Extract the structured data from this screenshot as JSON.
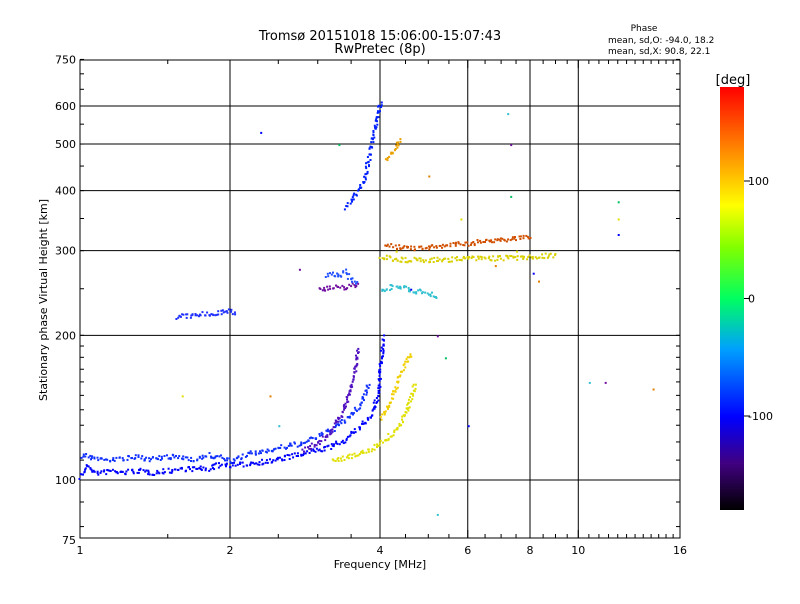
{
  "chart_data": {
    "type": "scatter",
    "title": "Tromsø 20151018 15:06:00-15:07:43",
    "subtitle": "RwPretec (8p)",
    "xlabel": "Frequency [MHz]",
    "ylabel": "Stationary phase Virtual Height [km]",
    "x_scale": "log2",
    "y_scale": "log",
    "xlim": [
      1,
      16
    ],
    "ylim": [
      70,
      750
    ],
    "x_ticks": [
      1,
      2,
      4,
      6,
      8,
      10,
      16
    ],
    "x_tick_labels": [
      "1",
      "2",
      "4",
      "6",
      "8",
      "10",
      "16"
    ],
    "x_grid": [
      2,
      4,
      6,
      8,
      10
    ],
    "y_ticks": [
      75,
      100,
      200,
      300,
      400,
      500,
      600,
      750
    ],
    "y_tick_labels": [
      "75",
      "100",
      "200",
      "300",
      "400",
      "500",
      "600",
      "750"
    ],
    "y_grid": [
      100,
      200,
      300,
      400,
      500,
      600
    ],
    "grid": true,
    "phase_stats": {
      "heading": "Phase",
      "line_o": "mean, sd,O: -94.0, 18.2",
      "line_x": "mean, sd,X:  90.8, 22.1"
    },
    "colorbar": {
      "label": "[deg]",
      "range": [
        -180,
        180
      ],
      "ticks": [
        -100,
        0,
        100
      ],
      "tick_labels": [
        "-100",
        "0",
        "100"
      ]
    },
    "traces": [
      {
        "color": "#0000ff",
        "phase": -100,
        "points": [
          [
            1.0,
            102
          ],
          [
            1.03,
            108
          ],
          [
            1.06,
            104
          ],
          [
            1.1,
            104
          ],
          [
            1.15,
            105
          ],
          [
            1.2,
            104
          ],
          [
            1.3,
            105
          ],
          [
            1.4,
            104
          ],
          [
            1.5,
            105
          ],
          [
            1.6,
            106
          ],
          [
            1.7,
            106
          ],
          [
            1.8,
            106
          ],
          [
            1.9,
            108
          ],
          [
            2.0,
            108
          ],
          [
            2.1,
            108
          ],
          [
            2.2,
            109
          ],
          [
            2.4,
            110
          ],
          [
            2.6,
            112
          ],
          [
            2.8,
            114
          ],
          [
            3.0,
            116
          ],
          [
            3.2,
            118
          ],
          [
            3.4,
            122
          ],
          [
            3.6,
            128
          ],
          [
            3.8,
            136
          ],
          [
            3.95,
            150
          ],
          [
            4.0,
            175
          ],
          [
            4.05,
            200
          ]
        ]
      },
      {
        "color": "#1030ff",
        "phase": -95,
        "points": [
          [
            1.0,
            113
          ],
          [
            1.05,
            112
          ],
          [
            1.1,
            111
          ],
          [
            1.2,
            111
          ],
          [
            1.3,
            112
          ],
          [
            1.4,
            111
          ],
          [
            1.5,
            112
          ],
          [
            1.6,
            112
          ],
          [
            1.7,
            111
          ],
          [
            1.8,
            113
          ],
          [
            1.9,
            112
          ],
          [
            2.0,
            110
          ],
          [
            2.2,
            114
          ],
          [
            2.4,
            116
          ],
          [
            2.6,
            118
          ],
          [
            2.8,
            120
          ],
          [
            3.0,
            124
          ],
          [
            3.2,
            128
          ],
          [
            3.4,
            134
          ],
          [
            3.6,
            142
          ],
          [
            3.7,
            150
          ],
          [
            3.8,
            160
          ]
        ]
      },
      {
        "color": "#5010c0",
        "phase": -120,
        "points": [
          [
            2.8,
            116
          ],
          [
            3.0,
            120
          ],
          [
            3.1,
            124
          ],
          [
            3.2,
            128
          ],
          [
            3.3,
            135
          ],
          [
            3.4,
            145
          ],
          [
            3.5,
            158
          ],
          [
            3.55,
            170
          ],
          [
            3.6,
            190
          ]
        ]
      },
      {
        "color": "#7010a0",
        "phase": -130,
        "points": [
          [
            3.0,
            250
          ],
          [
            3.2,
            252
          ],
          [
            3.4,
            253
          ],
          [
            3.5,
            255
          ],
          [
            3.6,
            255
          ]
        ]
      },
      {
        "color": "#2050ff",
        "phase": -90,
        "points": [
          [
            3.1,
            268
          ],
          [
            3.2,
            270
          ],
          [
            3.3,
            268
          ],
          [
            3.4,
            272
          ],
          [
            3.5,
            262
          ],
          [
            3.6,
            258
          ]
        ]
      },
      {
        "color": "#0020ff",
        "phase": -100,
        "points": [
          [
            3.4,
            370
          ],
          [
            3.5,
            385
          ],
          [
            3.6,
            400
          ],
          [
            3.7,
            420
          ],
          [
            3.75,
            450
          ],
          [
            3.8,
            480
          ],
          [
            3.85,
            510
          ],
          [
            3.9,
            540
          ],
          [
            3.95,
            580
          ],
          [
            4.0,
            620
          ]
        ]
      },
      {
        "color": "#2030ff",
        "phase": -95,
        "points": [
          [
            1.55,
            218
          ],
          [
            1.6,
            220
          ],
          [
            1.85,
            223
          ],
          [
            1.9,
            225
          ],
          [
            2.0,
            225
          ],
          [
            2.05,
            223
          ]
        ]
      },
      {
        "color": "#e0e000",
        "phase": 100,
        "points": [
          [
            3.2,
            110
          ],
          [
            3.4,
            112
          ],
          [
            3.6,
            114
          ],
          [
            3.8,
            116
          ],
          [
            4.0,
            120
          ],
          [
            4.2,
            125
          ],
          [
            4.4,
            132
          ],
          [
            4.5,
            140
          ],
          [
            4.6,
            150
          ],
          [
            4.7,
            160
          ]
        ]
      },
      {
        "color": "#f0d000",
        "phase": 110,
        "points": [
          [
            4.0,
            135
          ],
          [
            4.1,
            140
          ],
          [
            4.2,
            148
          ],
          [
            4.3,
            158
          ],
          [
            4.4,
            168
          ],
          [
            4.5,
            178
          ],
          [
            4.6,
            185
          ]
        ]
      },
      {
        "color": "#d8d000",
        "phase": 105,
        "points": [
          [
            4.0,
            292
          ],
          [
            4.2,
            290
          ],
          [
            4.5,
            288
          ],
          [
            5.0,
            288
          ],
          [
            5.5,
            289
          ],
          [
            6.0,
            290
          ],
          [
            6.5,
            290
          ],
          [
            7.0,
            291
          ],
          [
            7.5,
            291
          ],
          [
            8.0,
            292
          ],
          [
            8.5,
            294
          ],
          [
            9.0,
            295
          ]
        ]
      },
      {
        "color": "#d05000",
        "phase": 150,
        "points": [
          [
            4.1,
            310
          ],
          [
            4.5,
            305
          ],
          [
            5.0,
            305
          ],
          [
            5.5,
            310
          ],
          [
            6.0,
            312
          ],
          [
            6.5,
            315
          ],
          [
            7.0,
            318
          ],
          [
            7.5,
            320
          ],
          [
            8.0,
            322
          ]
        ]
      },
      {
        "color": "#30c0d0",
        "phase": -30,
        "points": [
          [
            4.0,
            250
          ],
          [
            4.3,
            255
          ],
          [
            4.6,
            250
          ],
          [
            5.0,
            245
          ],
          [
            5.2,
            240
          ]
        ]
      },
      {
        "color": "#e8a000",
        "phase": 140,
        "points": [
          [
            4.1,
            470
          ],
          [
            4.2,
            480
          ],
          [
            4.3,
            500
          ],
          [
            4.4,
            515
          ]
        ]
      }
    ],
    "outliers": [
      [
        1.6,
        150
      ],
      [
        2.3,
        530
      ],
      [
        2.4,
        150
      ],
      [
        2.5,
        130
      ],
      [
        2.75,
        275
      ],
      [
        3.3,
        500
      ],
      [
        4.3,
        300
      ],
      [
        4.6,
        250
      ],
      [
        5.0,
        430
      ],
      [
        5.2,
        85
      ],
      [
        5.2,
        200
      ],
      [
        5.4,
        180
      ],
      [
        5.8,
        350
      ],
      [
        6.0,
        130
      ],
      [
        6.8,
        280
      ],
      [
        7.2,
        580
      ],
      [
        7.3,
        500
      ],
      [
        7.3,
        390
      ],
      [
        7.5,
        300
      ],
      [
        8.1,
        270
      ],
      [
        8.3,
        260
      ],
      [
        10.5,
        160
      ],
      [
        11.3,
        160
      ],
      [
        12,
        380
      ],
      [
        12,
        350
      ],
      [
        12,
        325
      ],
      [
        14.1,
        155
      ]
    ]
  }
}
